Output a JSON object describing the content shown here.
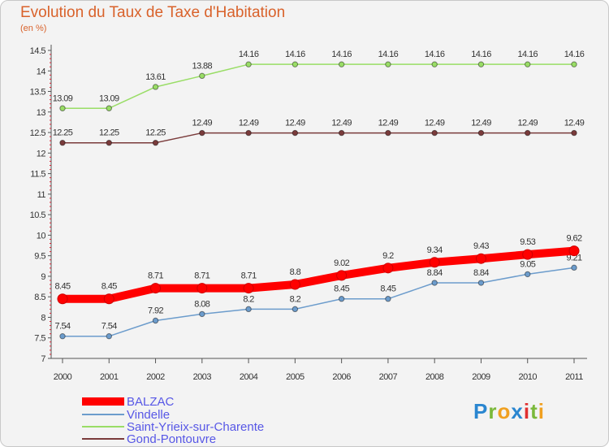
{
  "chart_data": {
    "type": "line",
    "title": "Evolution du Taux de Taxe d'Habitation",
    "subtitle": "(en %)",
    "categories": [
      "2000",
      "2001",
      "2002",
      "2003",
      "2004",
      "2005",
      "2006",
      "2007",
      "2008",
      "2009",
      "2010",
      "2011"
    ],
    "ylim": [
      7,
      14.5
    ],
    "yticks": [
      "7",
      "7.5",
      "8",
      "8.5",
      "9",
      "9.5",
      "10",
      "10.5",
      "11",
      "11.5",
      "12",
      "12.5",
      "13",
      "13.5",
      "14",
      "14.5"
    ],
    "grid": false,
    "legend_position": "bottom-left",
    "series": [
      {
        "name": "BALZAC",
        "color": "#ff0000",
        "values": [
          8.45,
          8.45,
          8.71,
          8.71,
          8.71,
          8.8,
          9.02,
          9.2,
          9.34,
          9.43,
          9.53,
          9.62
        ],
        "labels": [
          "8.45",
          "8.45",
          "8.71",
          "8.71",
          "8.71",
          "8.8",
          "9.02",
          "9.2",
          "9.34",
          "9.43",
          "9.53",
          "9.62"
        ]
      },
      {
        "name": "Vindelle",
        "color": "#6c9ccc",
        "values": [
          7.54,
          7.54,
          7.92,
          8.08,
          8.2,
          8.2,
          8.45,
          8.45,
          8.84,
          8.84,
          9.05,
          9.21
        ],
        "labels": [
          "7.54",
          "7.54",
          "7.92",
          "8.08",
          "8.2",
          "8.2",
          "8.45",
          "8.45",
          "8.84",
          "8.84",
          "9.05",
          "9.21"
        ]
      },
      {
        "name": "Saint-Yrieix-sur-Charente",
        "color": "#99dd66",
        "values": [
          13.09,
          13.09,
          13.61,
          13.88,
          14.16,
          14.16,
          14.16,
          14.16,
          14.16,
          14.16,
          14.16,
          14.16
        ],
        "labels": [
          "13.09",
          "13.09",
          "13.61",
          "13.88",
          "14.16",
          "14.16",
          "14.16",
          "14.16",
          "14.16",
          "14.16",
          "14.16",
          "14.16"
        ]
      },
      {
        "name": "Gond-Pontouvre",
        "color": "#7a3b3b",
        "values": [
          12.25,
          12.25,
          12.25,
          12.49,
          12.49,
          12.49,
          12.49,
          12.49,
          12.49,
          12.49,
          12.49,
          12.49
        ],
        "labels": [
          "12.25",
          "12.25",
          "12.25",
          "12.49",
          "12.49",
          "12.49",
          "12.49",
          "12.49",
          "12.49",
          "12.49",
          "12.49",
          "12.49"
        ]
      }
    ]
  },
  "logo": {
    "text": "Proxiti",
    "letters": [
      "P",
      "r",
      "o",
      "x",
      "i",
      "t",
      "i"
    ],
    "letter_colors": [
      "#2a86d0",
      "#7ab83a",
      "#f0a020",
      "#2a86d0",
      "#e03030",
      "#7ab83a",
      "#f0a020"
    ]
  }
}
